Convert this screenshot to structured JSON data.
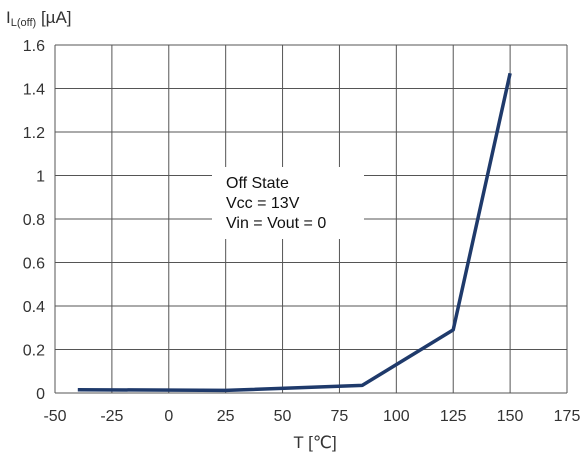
{
  "chart_data": {
    "type": "line",
    "title": "",
    "ylabel": {
      "main": "I",
      "subscript": "L(off)",
      "unit": " [µA]"
    },
    "xlabel": "T [℃]",
    "xlim": [
      -50,
      175
    ],
    "ylim": [
      0,
      1.6
    ],
    "x_ticks": [
      "-50",
      "-25",
      "0",
      "25",
      "50",
      "75",
      "100",
      "125",
      "150",
      "175"
    ],
    "y_ticks": [
      "0",
      "0.2",
      "0.4",
      "0.6",
      "0.8",
      "1",
      "1.2",
      "1.4",
      "1.6"
    ],
    "x_tick_values": [
      -50,
      -25,
      0,
      25,
      50,
      75,
      100,
      125,
      150,
      175
    ],
    "y_tick_values": [
      0,
      0.2,
      0.4,
      0.6,
      0.8,
      1.0,
      1.2,
      1.4,
      1.6
    ],
    "grid": true,
    "series": [
      {
        "x": [
          -40,
          25,
          85,
          125,
          150
        ],
        "y": [
          0.015,
          0.012,
          0.035,
          0.29,
          1.47
        ],
        "color": "#1f3a6b"
      }
    ],
    "annotation": {
      "lines": [
        "Off State",
        "Vcc = 13V",
        "Vin = Vout = 0"
      ]
    }
  }
}
